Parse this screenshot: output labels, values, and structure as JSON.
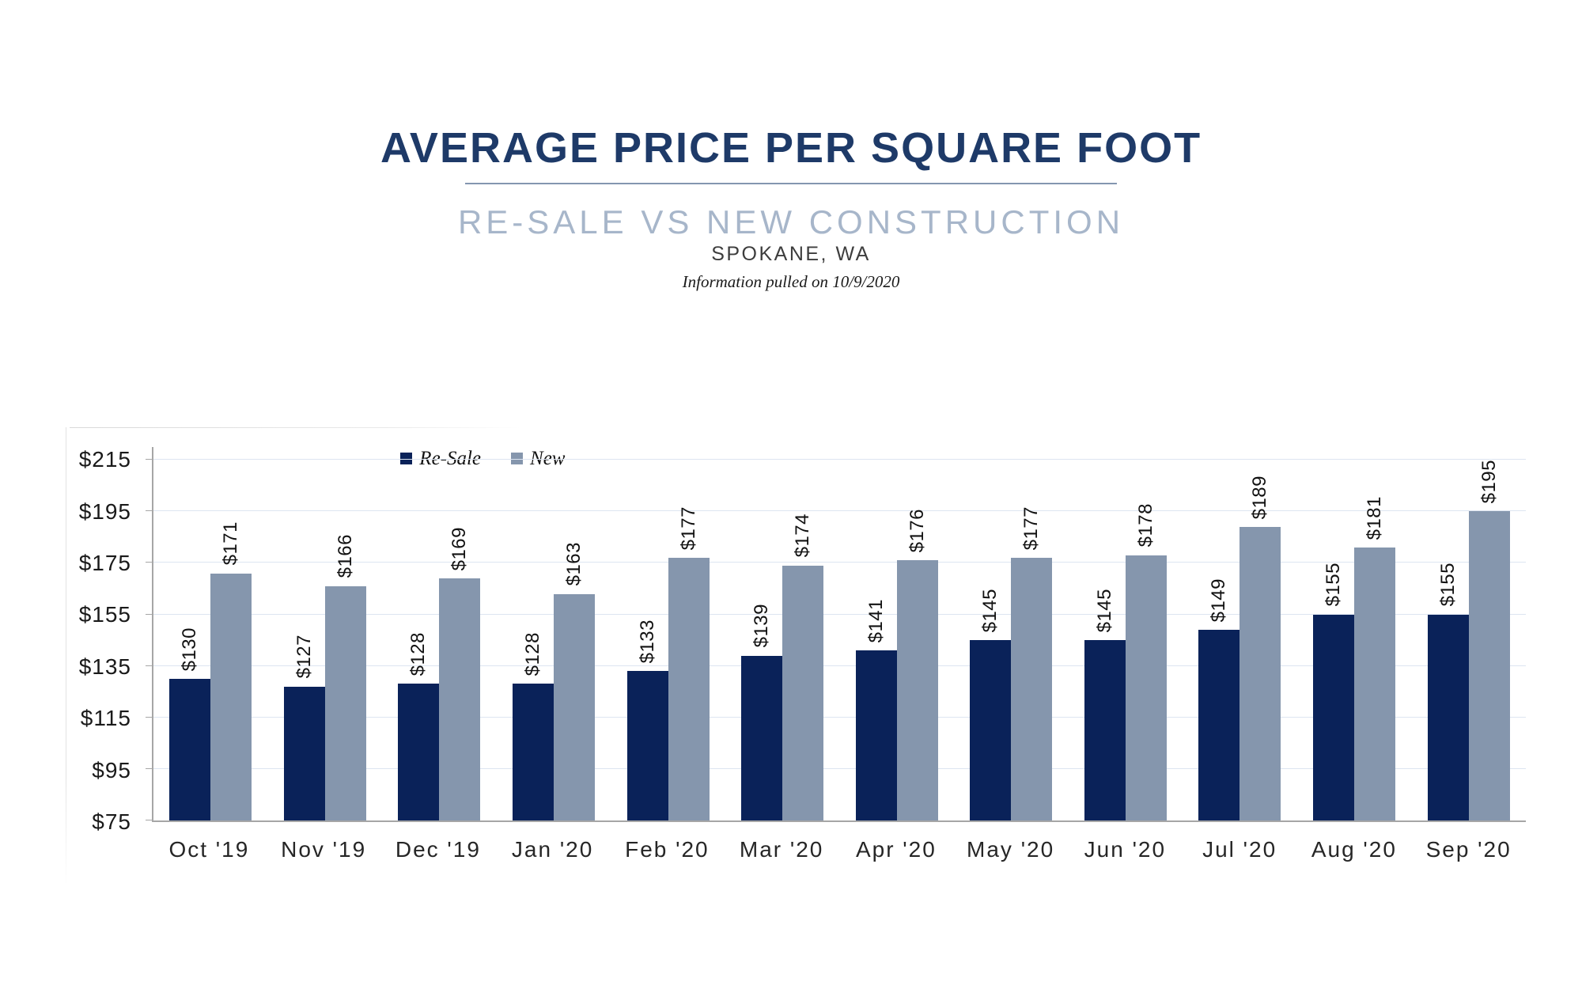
{
  "header": {
    "title": "AVERAGE PRICE PER SQUARE FOOT",
    "subtitle": "RE-SALE VS NEW CONSTRUCTION",
    "location": "SPOKANE, WA",
    "note": "Information pulled on 10/9/2020"
  },
  "chart_data": {
    "type": "bar",
    "title": "Average Price Per Square Foot — Re-Sale vs New Construction — Spokane, WA",
    "categories": [
      "Oct '19",
      "Nov '19",
      "Dec '19",
      "Jan '20",
      "Feb '20",
      "Mar '20",
      "Apr '20",
      "May '20",
      "Jun '20",
      "Jul '20",
      "Aug '20",
      "Sep '20"
    ],
    "series": [
      {
        "name": "Re-Sale",
        "color": "#0a2259",
        "values": [
          130,
          127,
          128,
          128,
          133,
          139,
          141,
          145,
          145,
          149,
          155,
          155
        ],
        "labels": [
          "$130",
          "$127",
          "$128",
          "$128",
          "$133",
          "$139",
          "$141",
          "$145",
          "$145",
          "$149",
          "$155",
          "$155"
        ]
      },
      {
        "name": "New",
        "color": "#8596ad",
        "values": [
          171,
          166,
          169,
          163,
          177,
          174,
          176,
          177,
          178,
          189,
          181,
          195
        ],
        "labels": [
          "$171",
          "$166",
          "$169",
          "$163",
          "$177",
          "$174",
          "$176",
          "$177",
          "$178",
          "$189",
          "$181",
          "$195"
        ]
      }
    ],
    "xlabel": "",
    "ylabel": "",
    "ylim": [
      75,
      215
    ],
    "yticks": [
      {
        "value": 75,
        "label": "$75"
      },
      {
        "value": 95,
        "label": "$95"
      },
      {
        "value": 115,
        "label": "$115"
      },
      {
        "value": 135,
        "label": "$135"
      },
      {
        "value": 155,
        "label": "$155"
      },
      {
        "value": 175,
        "label": "$175"
      },
      {
        "value": 195,
        "label": "$195"
      },
      {
        "value": 215,
        "label": "$215"
      }
    ],
    "grid": "horizontal",
    "legend_position": "inside-top-left",
    "data_labels": "rotated-90-above-bars",
    "gridline_color": "#dde5f1",
    "axis_color": "#a6a6a6",
    "label_color": "#111111"
  }
}
